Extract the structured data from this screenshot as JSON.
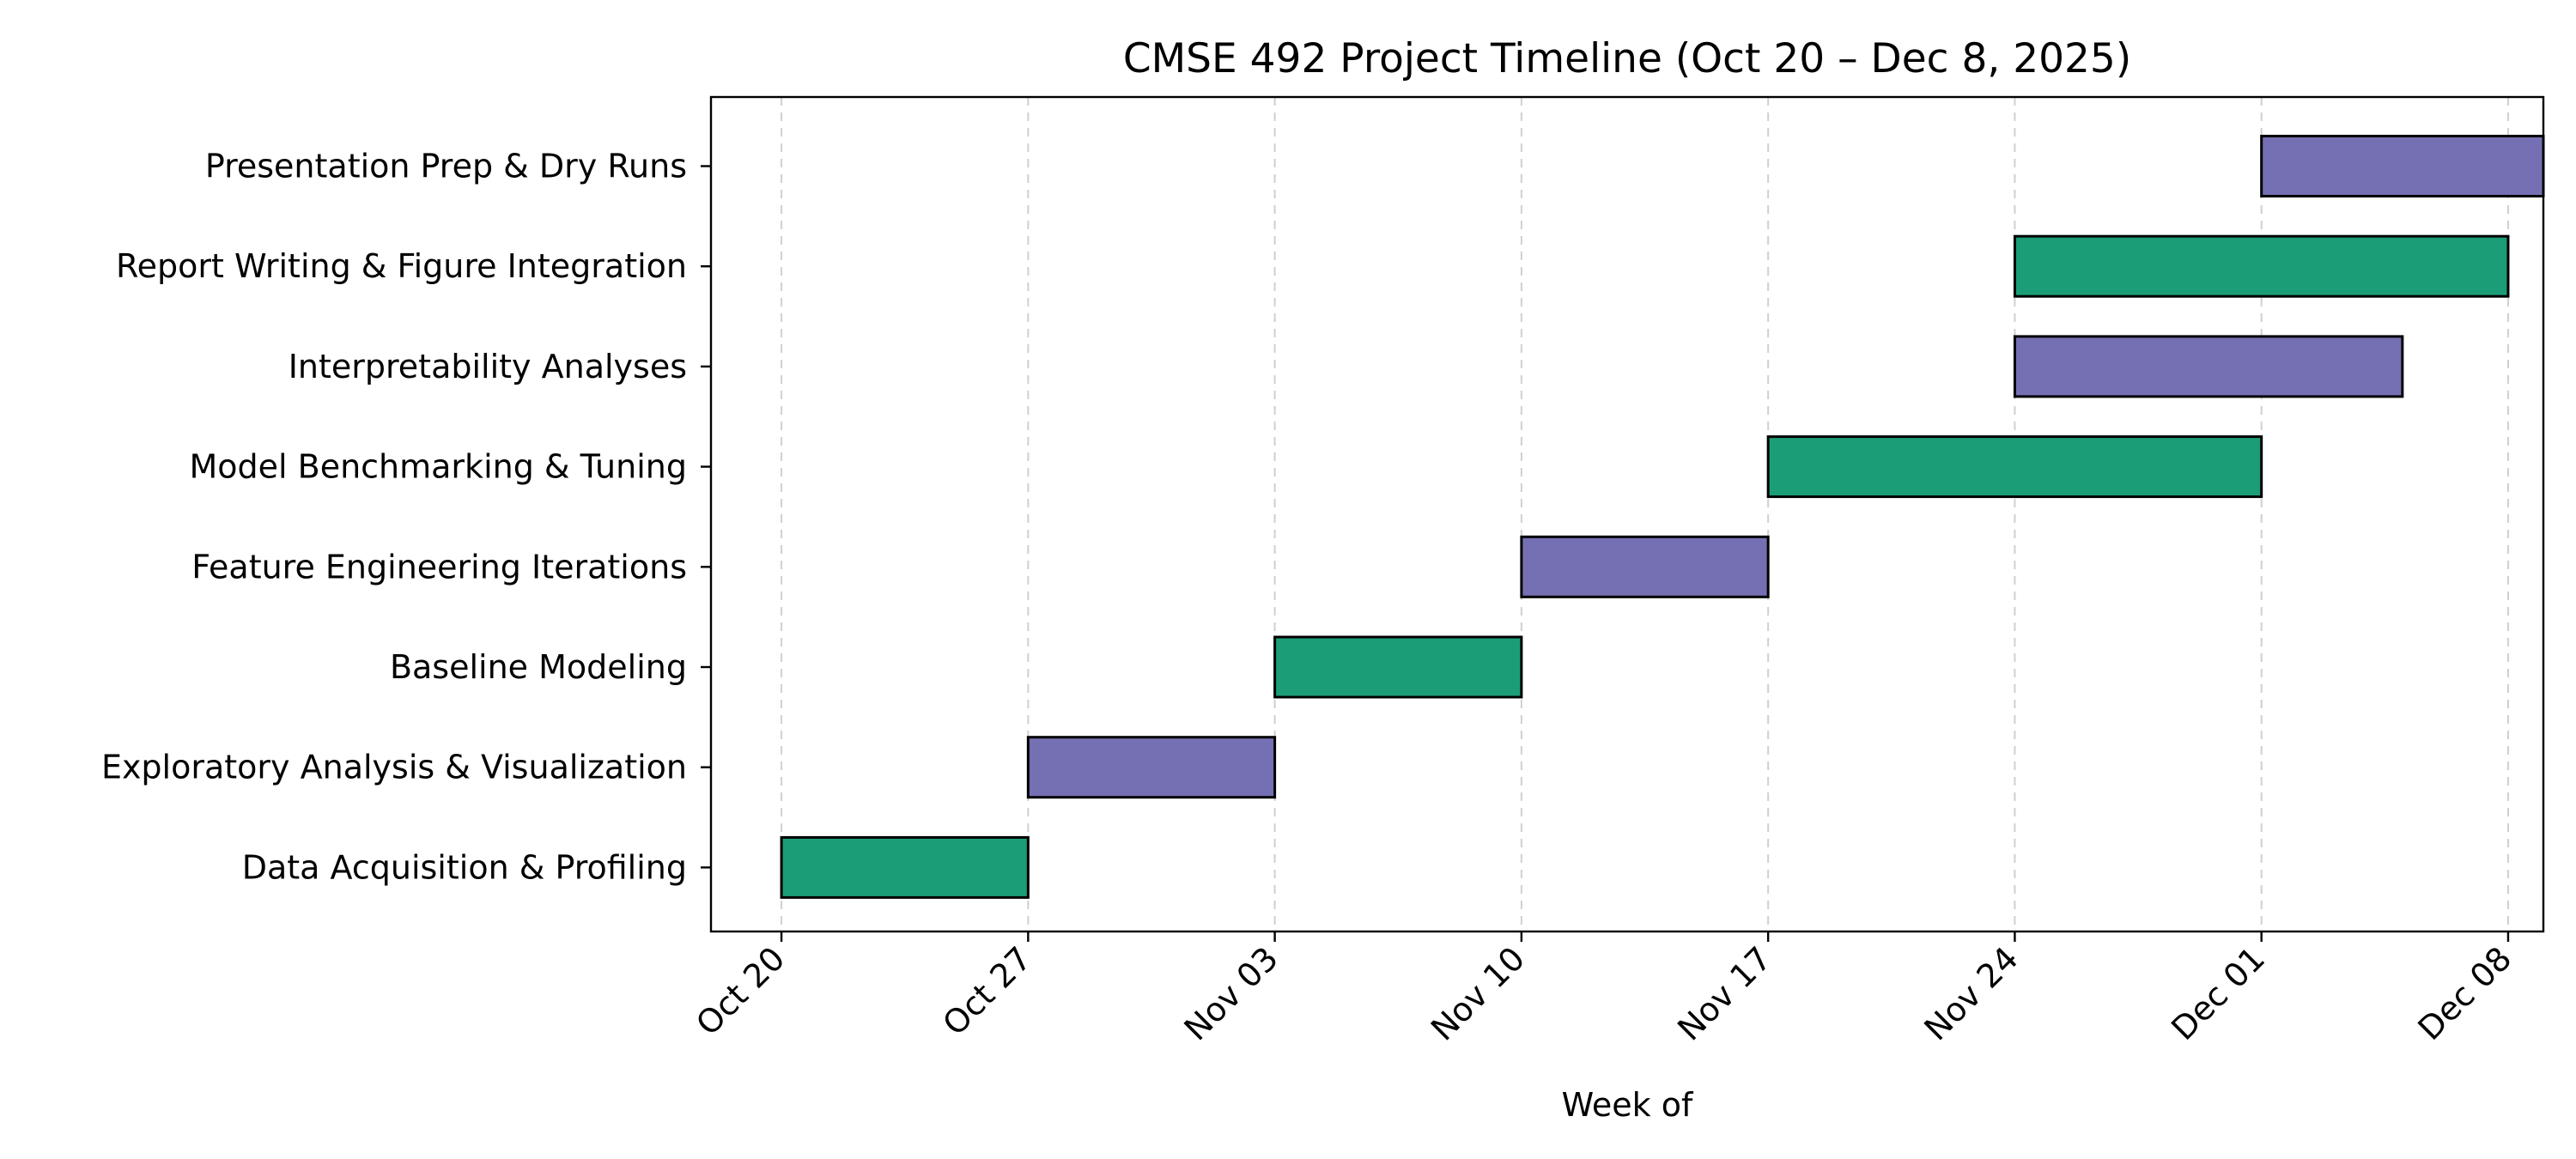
{
  "chart_data": {
    "type": "gantt",
    "title": "CMSE 492 Project Timeline (Oct 20 – Dec 8, 2025)",
    "xlabel": "Week of",
    "ylabel": "",
    "x_range": [
      "2025-10-18",
      "2025-12-09"
    ],
    "x_ticks": [
      {
        "date": "2025-10-20",
        "label": "Oct 20"
      },
      {
        "date": "2025-10-27",
        "label": "Oct 27"
      },
      {
        "date": "2025-11-03",
        "label": "Nov 03"
      },
      {
        "date": "2025-11-10",
        "label": "Nov 10"
      },
      {
        "date": "2025-11-17",
        "label": "Nov 17"
      },
      {
        "date": "2025-11-24",
        "label": "Nov 24"
      },
      {
        "date": "2025-12-01",
        "label": "Dec 01"
      },
      {
        "date": "2025-12-08",
        "label": "Dec 08"
      }
    ],
    "grid": "vertical dashed at weekly ticks",
    "colors": {
      "green": "#1b9e77",
      "purple": "#7570b3"
    },
    "tasks": [
      {
        "name": "Data Acquisition & Profiling",
        "start": "2025-10-20",
        "end": "2025-10-27",
        "color": "#1b9e77"
      },
      {
        "name": "Exploratory Analysis & Visualization",
        "start": "2025-10-27",
        "end": "2025-11-03",
        "color": "#7570b3"
      },
      {
        "name": "Baseline Modeling",
        "start": "2025-11-03",
        "end": "2025-11-10",
        "color": "#1b9e77"
      },
      {
        "name": "Feature Engineering Iterations",
        "start": "2025-11-10",
        "end": "2025-11-17",
        "color": "#7570b3"
      },
      {
        "name": "Model Benchmarking & Tuning",
        "start": "2025-11-17",
        "end": "2025-12-01",
        "color": "#1b9e77"
      },
      {
        "name": "Interpretability Analyses",
        "start": "2025-11-24",
        "end": "2025-12-05",
        "color": "#7570b3"
      },
      {
        "name": "Report Writing & Figure Integration",
        "start": "2025-11-24",
        "end": "2025-12-08",
        "color": "#1b9e77"
      },
      {
        "name": "Presentation Prep & Dry Runs",
        "start": "2025-12-01",
        "end": "2025-12-09",
        "color": "#7570b3"
      }
    ]
  }
}
